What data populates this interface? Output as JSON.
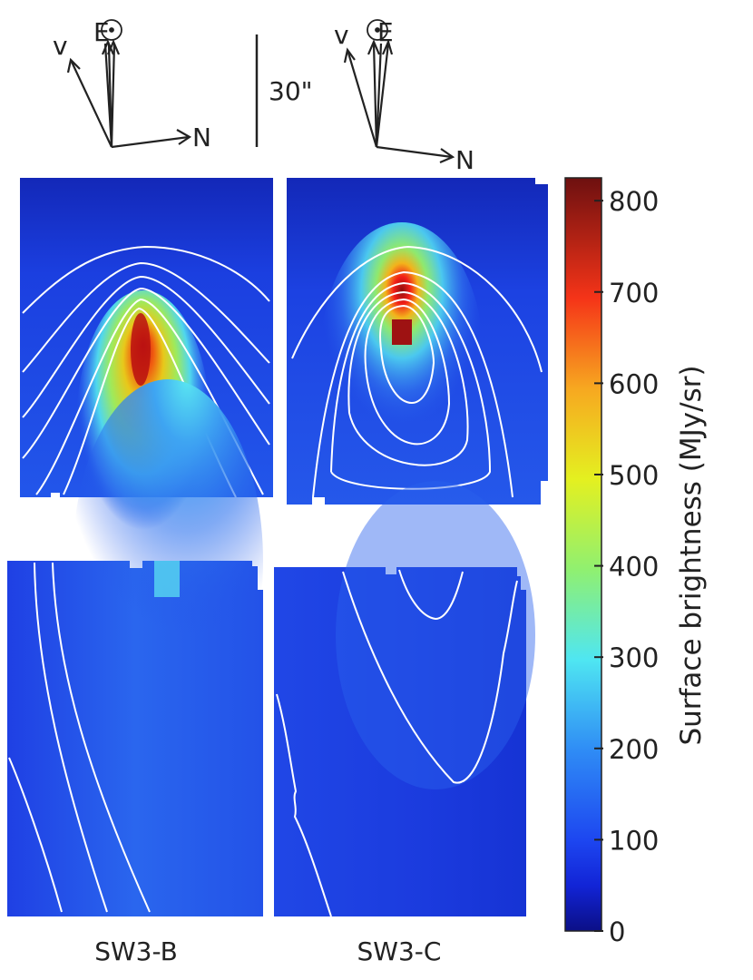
{
  "figure": {
    "scale_bar_label": "30\"",
    "compass": [
      {
        "panel": "SW3-B",
        "up_label": "E",
        "velocity_label": "v",
        "right_label": "N"
      },
      {
        "panel": "SW3-C",
        "up_label": "E",
        "velocity_label": "v",
        "right_label": "N"
      }
    ],
    "panel_labels": [
      "SW3-B",
      "SW3-C"
    ]
  },
  "chart_data": [
    {
      "type": "heatmap",
      "title": "SW3-B",
      "row": "upper",
      "peak_surface_brightness": 820,
      "contours": 7,
      "description_values": {
        "colorbar_range": [
          0,
          820
        ]
      }
    },
    {
      "type": "heatmap",
      "title": "SW3-C",
      "row": "upper",
      "peak_surface_brightness": 820,
      "contours": 6
    },
    {
      "type": "heatmap",
      "title": "SW3-B",
      "row": "lower",
      "peak_surface_brightness": 300,
      "contours": 3
    },
    {
      "type": "heatmap",
      "title": "SW3-C",
      "row": "lower",
      "peak_surface_brightness": 110,
      "contours": 3
    },
    {
      "type": "colorbar",
      "label": "Surface brightness (MJy/sr)",
      "ticks": [
        0,
        100,
        200,
        300,
        400,
        500,
        600,
        700,
        800
      ],
      "range": [
        0,
        825
      ],
      "colormap": [
        "#00008f",
        "#0000ff",
        "#3f6fff",
        "#5fe8ff",
        "#dfff2f",
        "#ffbf00",
        "#ff3f00",
        "#8f0000"
      ]
    }
  ]
}
